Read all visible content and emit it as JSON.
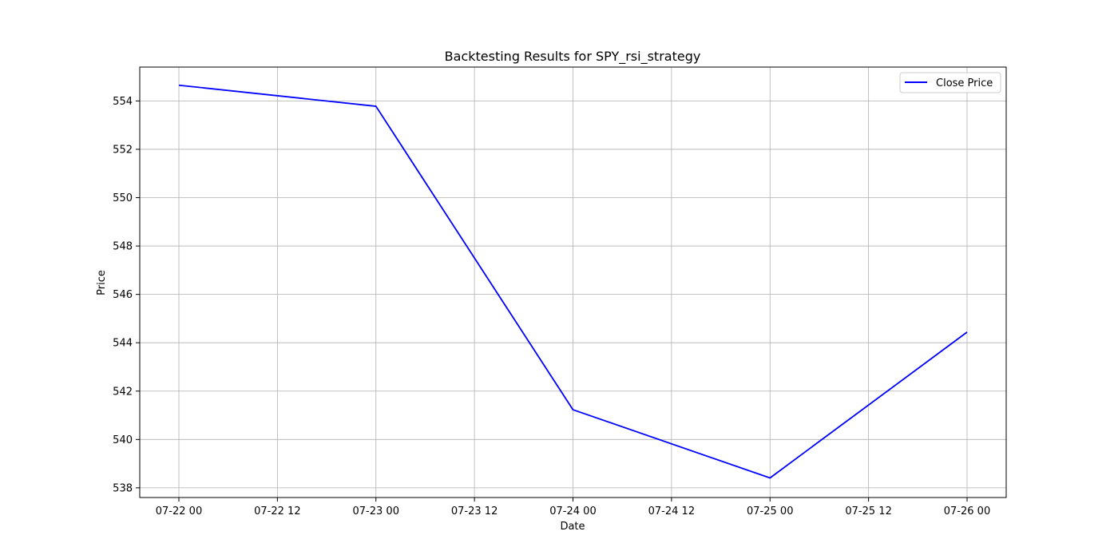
{
  "chart_data": {
    "type": "line",
    "title": "Backtesting Results for SPY_rsi_strategy",
    "xlabel": "Date",
    "ylabel": "Price",
    "x_ticks": [
      "07-22 00",
      "07-22 12",
      "07-23 00",
      "07-23 12",
      "07-24 00",
      "07-24 12",
      "07-25 00",
      "07-25 12",
      "07-26 00"
    ],
    "y_ticks": [
      538,
      540,
      542,
      544,
      546,
      548,
      550,
      552,
      554
    ],
    "ylim": [
      537.6,
      555.4
    ],
    "grid": true,
    "legend_position": "top-right",
    "x": [
      "07-22 00",
      "07-23 00",
      "07-24 00",
      "07-25 00",
      "07-26 00"
    ],
    "series": [
      {
        "name": "Close Price",
        "color": "#0000ff",
        "values": [
          554.65,
          553.78,
          541.23,
          538.41,
          544.44
        ]
      }
    ]
  }
}
